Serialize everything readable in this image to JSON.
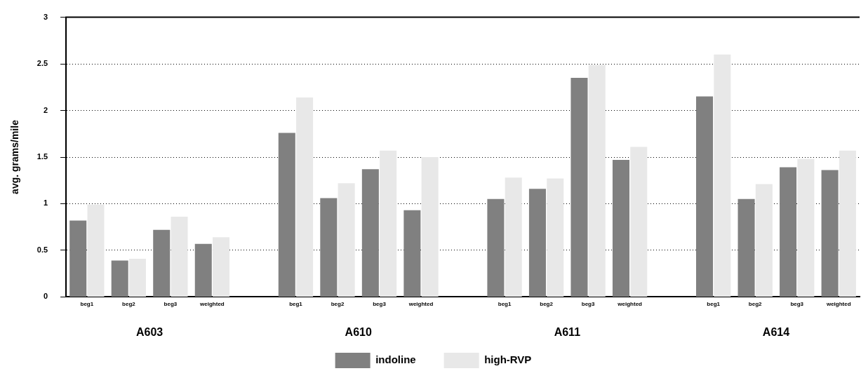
{
  "chart_data": {
    "type": "bar",
    "ylabel": "avg. grams/mile",
    "categories": [
      "beg1",
      "beg2",
      "beg3",
      "weighted",
      null,
      "beg1",
      "beg2",
      "beg3",
      "weighted",
      null,
      "beg1",
      "beg2",
      "beg3",
      "weighted",
      null,
      "beg1",
      "beg2",
      "beg3",
      "weighted"
    ],
    "series": [
      {
        "name": "indoline",
        "color": "#808080",
        "values": [
          0.82,
          0.39,
          0.72,
          0.57,
          null,
          1.76,
          1.06,
          1.37,
          0.93,
          null,
          1.05,
          1.16,
          2.35,
          1.47,
          null,
          2.15,
          1.05,
          1.39,
          1.36
        ]
      },
      {
        "name": "high-RVP",
        "color": "#e8e8e8",
        "values": [
          0.99,
          0.41,
          0.86,
          0.64,
          null,
          2.14,
          1.22,
          1.57,
          1.5,
          null,
          1.28,
          1.27,
          2.49,
          1.61,
          null,
          2.6,
          1.21,
          1.48,
          1.57
        ]
      }
    ],
    "annotations": [
      "A603",
      "A610",
      "A611",
      "A614"
    ],
    "ylim": [
      0,
      3
    ],
    "yticks": [
      0,
      0.5,
      1,
      1.5,
      2,
      2.5,
      3
    ],
    "grid": "y",
    "legend": "bottom"
  }
}
